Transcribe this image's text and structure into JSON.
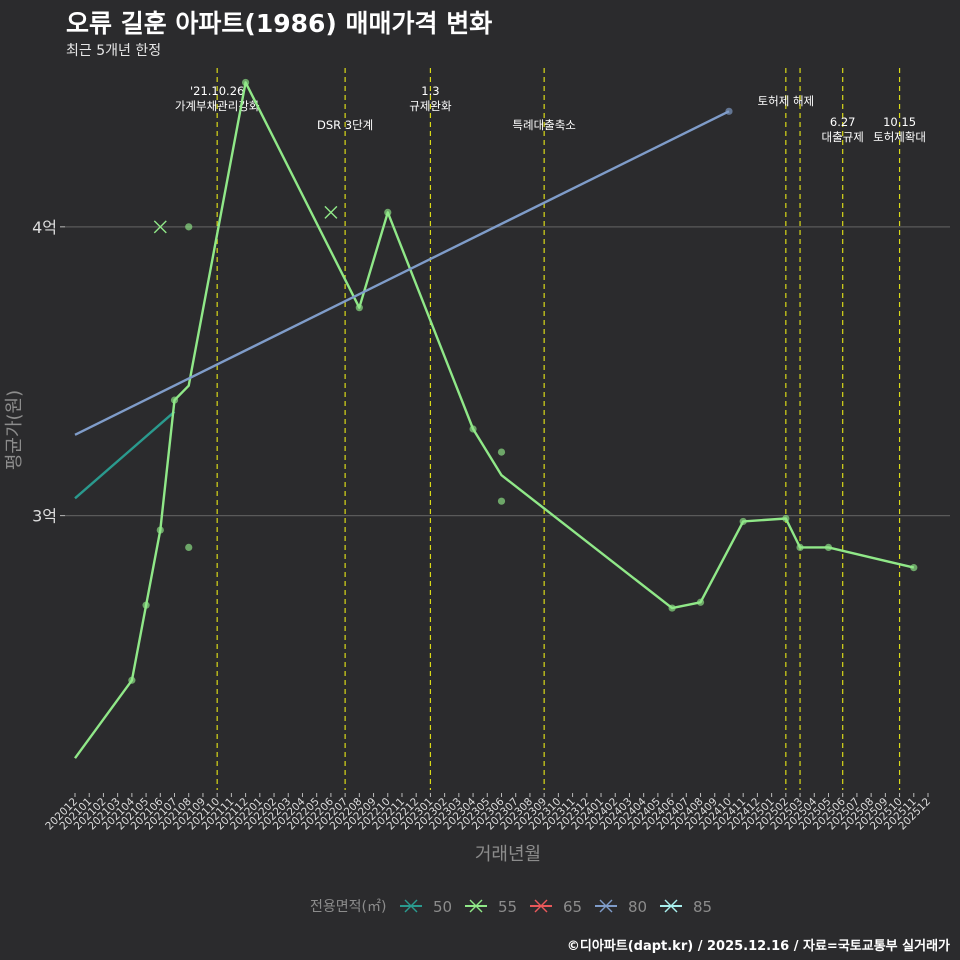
{
  "header": {
    "title": "오류 길훈 아파트(1986) 매매가격 변화",
    "subtitle": "최근 5개년 한정"
  },
  "caption": "©디아파트(dapt.kr) / 2025.12.16 / 자료=국토교통부 실거래가",
  "colors": {
    "background": "#2b2b2d",
    "grid": "#5a5a5a",
    "vline": "#d9d918",
    "text": "#ffffff",
    "axis_text": "#dddddd",
    "axis_title": "#8c8c8c"
  },
  "chart_data": {
    "type": "line",
    "xlabel": "거래년월",
    "ylabel": "평균가(원)",
    "x_categories": [
      "202012",
      "202101",
      "202102",
      "202103",
      "202104",
      "202105",
      "202106",
      "202107",
      "202108",
      "202109",
      "202110",
      "202111",
      "202112",
      "202201",
      "202202",
      "202203",
      "202204",
      "202205",
      "202206",
      "202207",
      "202208",
      "202209",
      "202210",
      "202211",
      "202212",
      "202301",
      "202302",
      "202303",
      "202304",
      "202305",
      "202306",
      "202307",
      "202308",
      "202309",
      "202310",
      "202311",
      "202312",
      "202401",
      "202402",
      "202403",
      "202404",
      "202405",
      "202406",
      "202407",
      "202408",
      "202409",
      "202410",
      "202411",
      "202412",
      "202501",
      "202502",
      "202503",
      "202504",
      "202505",
      "202506",
      "202507",
      "202508",
      "202509",
      "202510",
      "202511",
      "202512"
    ],
    "y_ticks": [
      {
        "value": 3.0,
        "label": "3억"
      },
      {
        "value": 4.0,
        "label": "4억"
      }
    ],
    "ylim": [
      2.05,
      4.55
    ],
    "legend": {
      "title": "전용면적(㎡)",
      "position": "bottom",
      "entries": [
        {
          "label": "50",
          "color": "#2a9a8e"
        },
        {
          "label": "55",
          "color": "#90e888"
        },
        {
          "label": "65",
          "color": "#e8585a"
        },
        {
          "label": "80",
          "color": "#7f9cc9"
        },
        {
          "label": "85",
          "color": "#a8f0ee"
        }
      ]
    },
    "events": [
      {
        "x": "202110",
        "label": "'21.10.26\n가계부채관리강화",
        "level": 1
      },
      {
        "x": "202207",
        "label": "DSR 3단계",
        "level": 2
      },
      {
        "x": "202301",
        "label": "1.3\n규제완화",
        "level": 1
      },
      {
        "x": "202309",
        "label": "특례대출축소",
        "level": 2
      },
      {
        "x": "202502",
        "label": "토허제 해제",
        "level": 1
      },
      {
        "x": "202503",
        "label": "",
        "level": 1
      },
      {
        "x": "202506",
        "label": "6.27\n대출규제",
        "level": 2
      },
      {
        "x": "202510",
        "label": "10.15\n토허제확대",
        "level": 2
      }
    ],
    "series": [
      {
        "name": "50",
        "color": "#2a9a8e",
        "trend": [
          {
            "x": "202012",
            "y": 3.06
          },
          {
            "x": "202107",
            "y": 3.36
          }
        ],
        "points": []
      },
      {
        "name": "55",
        "color": "#90e888",
        "line": [
          {
            "x": "202012",
            "y": 2.16
          },
          {
            "x": "202104",
            "y": 2.43
          },
          {
            "x": "202105",
            "y": 2.69
          },
          {
            "x": "202106",
            "y": 2.95
          },
          {
            "x": "202107",
            "y": 3.4
          },
          {
            "x": "202108",
            "y": 3.45
          },
          {
            "x": "202112",
            "y": 4.5
          },
          {
            "x": "202208",
            "y": 3.72
          },
          {
            "x": "202210",
            "y": 4.05
          },
          {
            "x": "202304",
            "y": 3.3
          },
          {
            "x": "202306",
            "y": 3.14
          },
          {
            "x": "202406",
            "y": 2.68
          },
          {
            "x": "202408",
            "y": 2.7
          },
          {
            "x": "202411",
            "y": 2.98
          },
          {
            "x": "202502",
            "y": 2.99
          },
          {
            "x": "202503",
            "y": 2.89
          },
          {
            "x": "202505",
            "y": 2.89
          },
          {
            "x": "202511",
            "y": 2.82
          }
        ],
        "points": [
          {
            "x": "202104",
            "y": 2.43
          },
          {
            "x": "202105",
            "y": 2.69
          },
          {
            "x": "202106",
            "y": 2.95
          },
          {
            "x": "202107",
            "y": 3.4
          },
          {
            "x": "202108",
            "y": 4.0
          },
          {
            "x": "202108",
            "y": 2.89
          },
          {
            "x": "202112",
            "y": 4.5
          },
          {
            "x": "202208",
            "y": 3.72
          },
          {
            "x": "202210",
            "y": 4.05
          },
          {
            "x": "202304",
            "y": 3.3
          },
          {
            "x": "202306",
            "y": 3.22
          },
          {
            "x": "202306",
            "y": 3.05
          },
          {
            "x": "202406",
            "y": 2.68
          },
          {
            "x": "202408",
            "y": 2.7
          },
          {
            "x": "202411",
            "y": 2.98
          },
          {
            "x": "202502",
            "y": 2.99
          },
          {
            "x": "202503",
            "y": 2.89
          },
          {
            "x": "202505",
            "y": 2.89
          },
          {
            "x": "202511",
            "y": 2.82
          }
        ],
        "crosses": [
          {
            "x": "202106",
            "y": 4.0
          },
          {
            "x": "202206",
            "y": 4.05
          }
        ]
      },
      {
        "name": "80",
        "color": "#7f9cc9",
        "trend": [
          {
            "x": "202012",
            "y": 3.28
          },
          {
            "x": "202410",
            "y": 4.4
          }
        ],
        "points": [
          {
            "x": "202410",
            "y": 4.4
          }
        ]
      }
    ]
  }
}
